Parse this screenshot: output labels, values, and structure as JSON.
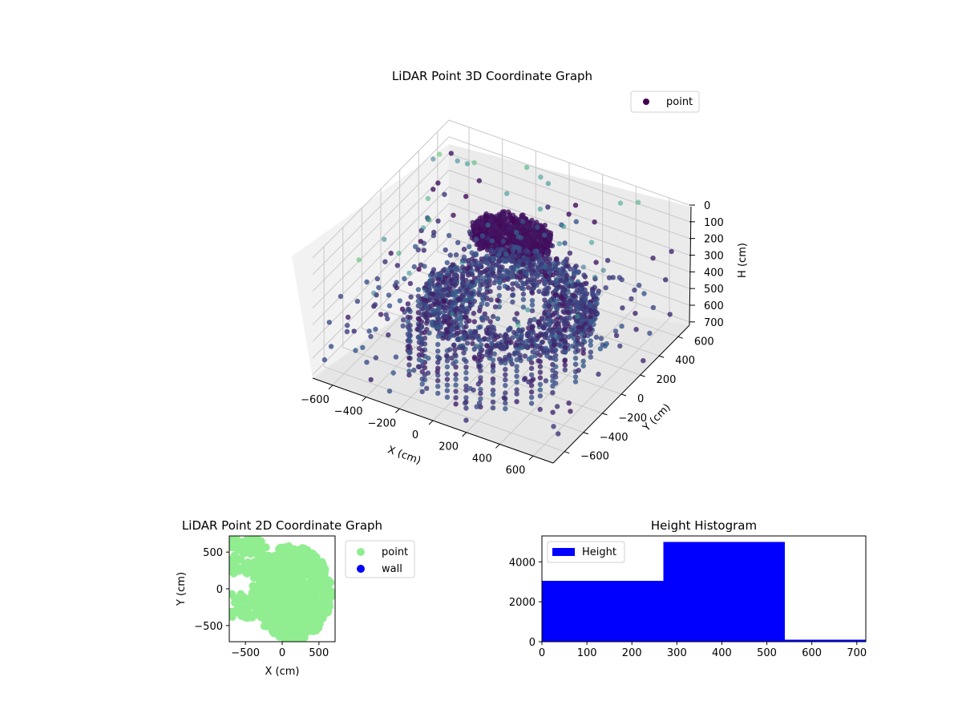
{
  "chart_data": [
    {
      "type": "scatter",
      "title": "LiDAR Point 3D Coordinate Graph",
      "xlabel": "X (cm)",
      "ylabel": "Y (cm)",
      "zlabel": "H (cm)",
      "xlim": [
        -720,
        720
      ],
      "ylim": [
        -720,
        720
      ],
      "zlim": [
        0,
        720
      ],
      "z_inverted": true,
      "x_ticks": [
        -600,
        -400,
        -200,
        0,
        200,
        400,
        600
      ],
      "y_ticks": [
        -600,
        -400,
        -200,
        0,
        200,
        400,
        600
      ],
      "z_ticks": [
        0,
        100,
        200,
        300,
        400,
        500,
        600,
        700
      ],
      "grid": true,
      "colormap": "viridis",
      "legend": {
        "position": "top-right",
        "entries": [
          {
            "name": "point",
            "color": "#440154"
          }
        ]
      }
    },
    {
      "type": "scatter",
      "title": "LiDAR Point 2D Coordinate Graph",
      "xlabel": "X (cm)",
      "ylabel": "Y (cm)",
      "xlim": [
        -720,
        720
      ],
      "ylim": [
        -720,
        720
      ],
      "x_ticks": [
        -500,
        0,
        500
      ],
      "y_ticks": [
        -500,
        0,
        500
      ],
      "legend": {
        "position": "outside-right",
        "entries": [
          {
            "name": "point",
            "color": "#90ee90"
          },
          {
            "name": "wall",
            "color": "#0000ff"
          }
        ]
      }
    },
    {
      "type": "bar",
      "title": "Height Histogram",
      "xlabel": "",
      "ylabel": "",
      "xlim": [
        0,
        720
      ],
      "ylim": [
        0,
        5300
      ],
      "x_ticks": [
        0,
        100,
        200,
        300,
        400,
        500,
        600,
        700
      ],
      "y_ticks": [
        0,
        2000,
        4000
      ],
      "bins": [
        {
          "start": 0,
          "end": 270,
          "count": 3050
        },
        {
          "start": 270,
          "end": 540,
          "count": 5000
        },
        {
          "start": 540,
          "end": 720,
          "count": 100
        }
      ],
      "series": [
        {
          "name": "Height",
          "color": "#0000ff"
        }
      ],
      "legend": {
        "position": "top-left"
      }
    }
  ]
}
